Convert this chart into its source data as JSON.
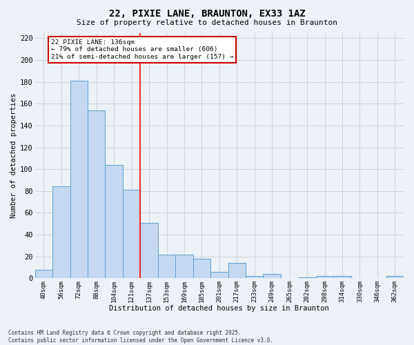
{
  "title": "22, PIXIE LANE, BRAUNTON, EX33 1AZ",
  "subtitle": "Size of property relative to detached houses in Braunton",
  "xlabel": "Distribution of detached houses by size in Braunton",
  "ylabel": "Number of detached properties",
  "categories": [
    "40sqm",
    "56sqm",
    "72sqm",
    "88sqm",
    "104sqm",
    "121sqm",
    "137sqm",
    "153sqm",
    "169sqm",
    "185sqm",
    "201sqm",
    "217sqm",
    "233sqm",
    "249sqm",
    "265sqm",
    "282sqm",
    "298sqm",
    "314sqm",
    "330sqm",
    "346sqm",
    "362sqm"
  ],
  "values": [
    8,
    84,
    181,
    154,
    104,
    81,
    51,
    22,
    22,
    18,
    6,
    14,
    2,
    4,
    0,
    1,
    2,
    2,
    0,
    0,
    2
  ],
  "bar_color": "#c5d8f0",
  "bar_edge_color": "#5a9fd4",
  "grid_color": "#cccccc",
  "bg_color": "#edf1f8",
  "red_line_index": 6,
  "annotation_text": "22 PIXIE LANE: 136sqm\n← 79% of detached houses are smaller (606)\n21% of semi-detached houses are larger (157) →",
  "annotation_box_facecolor": "#ffffff",
  "annotation_box_edgecolor": "#cc0000",
  "ylim": [
    0,
    225
  ],
  "yticks": [
    0,
    20,
    40,
    60,
    80,
    100,
    120,
    140,
    160,
    180,
    200,
    220
  ],
  "footer_line1": "Contains HM Land Registry data © Crown copyright and database right 2025.",
  "footer_line2": "Contains public sector information licensed under the Open Government Licence v3.0."
}
